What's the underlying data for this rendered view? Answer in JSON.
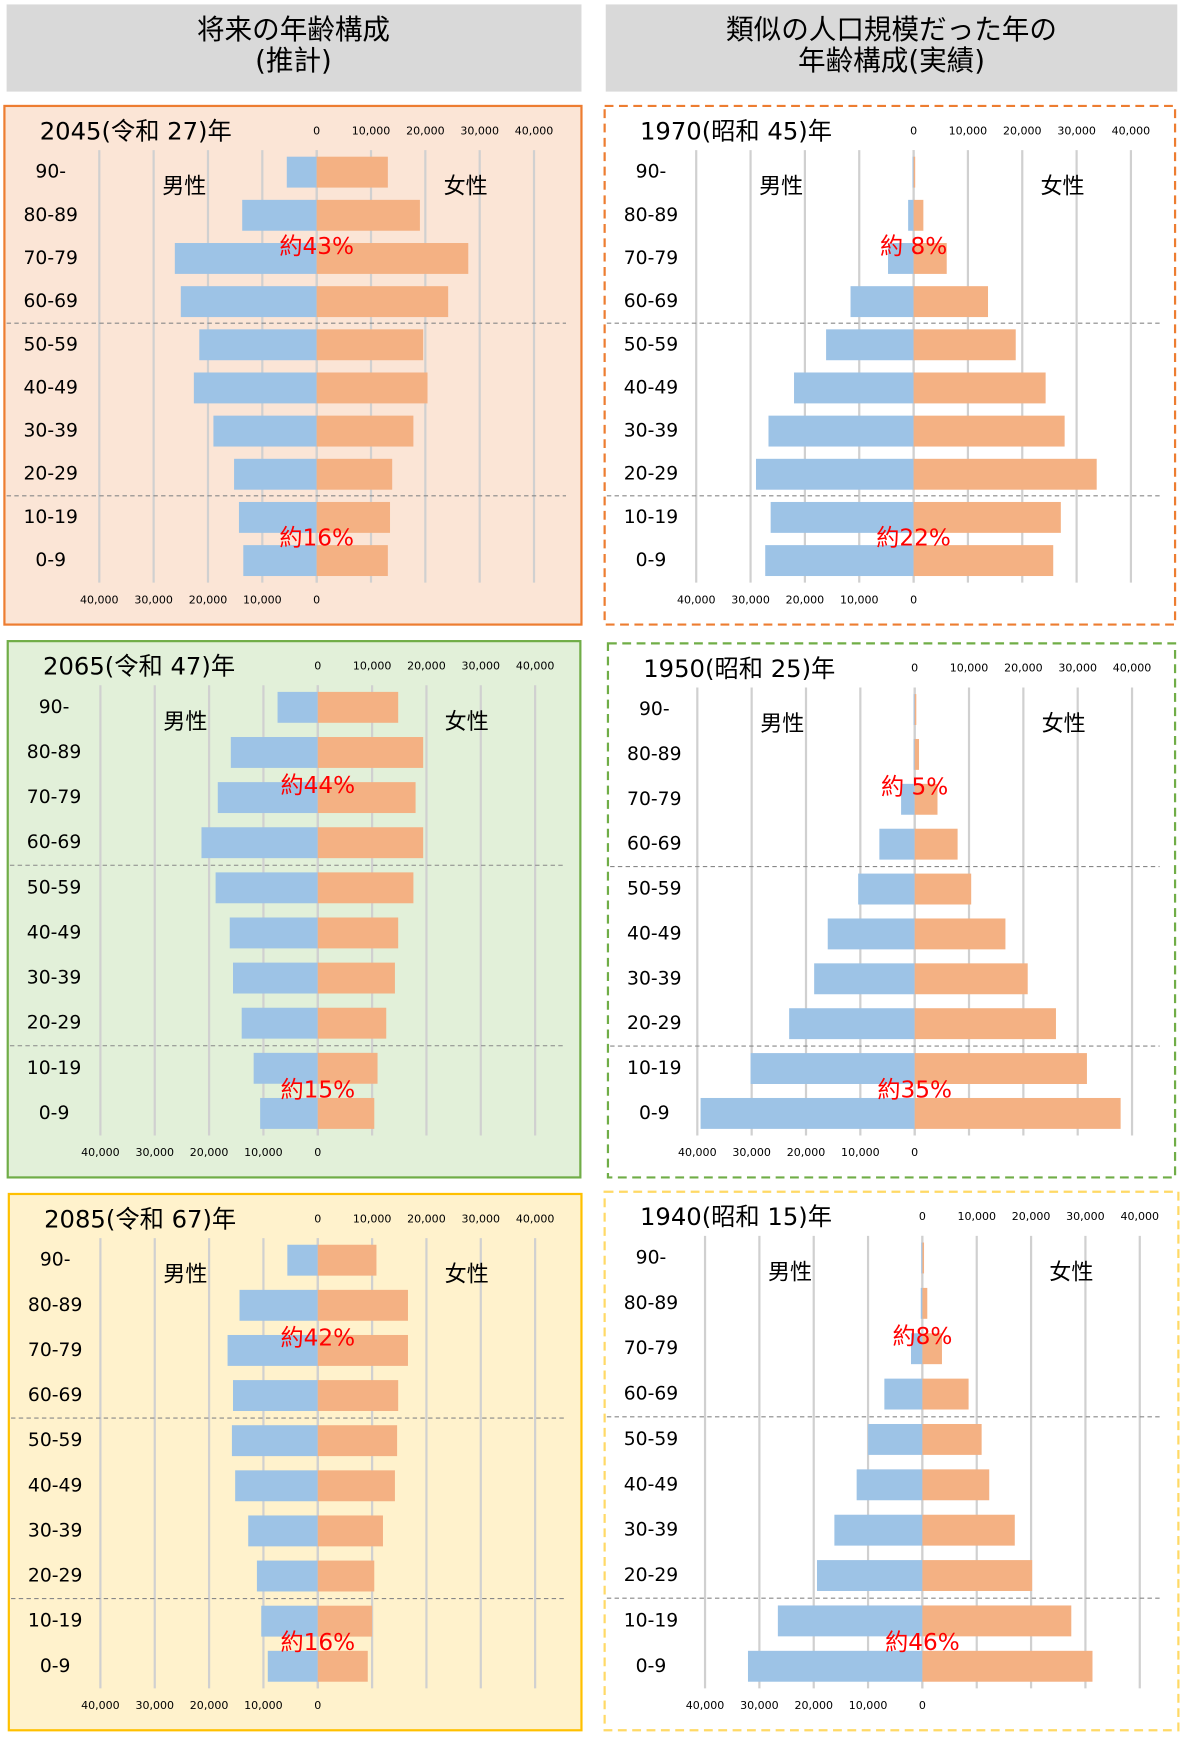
{
  "headers": [
    [
      "将来の年齢構成",
      "(推計)"
    ],
    [
      "類似の人口規模だった年の",
      "年齢構成(実績)"
    ]
  ],
  "chart_data": [
    {
      "type": "bar",
      "title": "2045(令和 27)年",
      "background": "#fbe5d6",
      "border_color": "#ed7d31",
      "border_style": "solid",
      "categories": [
        "90-",
        "80-89",
        "70-79",
        "60-69",
        "50-59",
        "40-49",
        "30-39",
        "20-29",
        "10-19",
        "0-9"
      ],
      "series": [
        {
          "name": "男性",
          "color": "#9dc3e6",
          "values": [
            5500,
            13700,
            26100,
            25000,
            21600,
            22600,
            19000,
            15200,
            14300,
            13500
          ]
        },
        {
          "name": "女性",
          "color": "#f4b183",
          "values": [
            13100,
            19000,
            27900,
            24200,
            19600,
            20400,
            17800,
            13900,
            13500,
            13100
          ]
        }
      ],
      "xlim": [
        0,
        40000
      ],
      "xticks": [
        {
          "value": 40000,
          "label": "40,000"
        },
        {
          "value": 30000,
          "label": "30,000"
        },
        {
          "value": 20000,
          "label": "20,000"
        },
        {
          "value": 10000,
          "label": "10,000"
        },
        0
      ],
      "x2ticks": [
        0,
        {
          "value": 10000,
          "label": "10,000"
        },
        {
          "value": 20000,
          "label": "20,000"
        },
        {
          "value": 30000,
          "label": "30,000"
        },
        {
          "value": 40000,
          "label": "40,000"
        }
      ],
      "annotations": [
        "約43%",
        "約16%"
      ]
    },
    {
      "type": "bar",
      "title": "1970(昭和 45)年",
      "background": "#ffffff",
      "border_color": "#ed7d31",
      "border_style": "dashed",
      "categories": [
        "90-",
        "80-89",
        "70-79",
        "60-69",
        "50-59",
        "40-49",
        "30-39",
        "20-29",
        "10-19",
        "0-9"
      ],
      "series": [
        {
          "name": "男性",
          "color": "#9dc3e6",
          "values": [
            200,
            1000,
            4700,
            11600,
            16100,
            22000,
            26700,
            29000,
            26300,
            27300
          ]
        },
        {
          "name": "女性",
          "color": "#f4b183",
          "values": [
            300,
            1800,
            6100,
            13700,
            18800,
            24300,
            27800,
            33700,
            27100,
            25700
          ]
        }
      ],
      "xlim": [
        0,
        40000
      ],
      "xticks": [
        {
          "value": 40000,
          "label": "40,000"
        },
        {
          "value": 30000,
          "label": "30,000"
        },
        {
          "value": 20000,
          "label": "20,000"
        },
        {
          "value": 10000,
          "label": "10,000"
        },
        0
      ],
      "x2ticks": [
        0,
        {
          "value": 10000,
          "label": "10,000"
        },
        {
          "value": 20000,
          "label": "20,000"
        },
        {
          "value": 30000,
          "label": "30,000"
        },
        {
          "value": 40000,
          "label": "40,000"
        }
      ],
      "annotations": [
        "約 8%",
        "約22%"
      ]
    },
    {
      "type": "bar",
      "title": "2065(令和 47)年",
      "background": "#e2f0d9",
      "border_color": "#70ad47",
      "border_style": "solid",
      "categories": [
        "90-",
        "80-89",
        "70-79",
        "60-69",
        "50-59",
        "40-49",
        "30-39",
        "20-29",
        "10-19",
        "0-9"
      ],
      "series": [
        {
          "name": "男性",
          "color": "#9dc3e6",
          "values": [
            7400,
            16000,
            18400,
            21400,
            18800,
            16200,
            15600,
            14000,
            11800,
            10600
          ]
        },
        {
          "name": "女性",
          "color": "#f4b183",
          "values": [
            14800,
            19400,
            18000,
            19400,
            17600,
            14800,
            14200,
            12600,
            11000,
            10400
          ]
        }
      ],
      "xlim": [
        0,
        40000
      ],
      "xticks": [
        {
          "value": 40000,
          "label": "40,000"
        },
        {
          "value": 30000,
          "label": "30,000"
        },
        {
          "value": 20000,
          "label": "20,000"
        },
        {
          "value": 10000,
          "label": "10,000"
        },
        0
      ],
      "x2ticks": [
        0,
        {
          "value": 10000,
          "label": "10,000"
        },
        {
          "value": 20000,
          "label": "20,000"
        },
        {
          "value": 30000,
          "label": "30,000"
        },
        {
          "value": 40000,
          "label": "40,000"
        }
      ],
      "annotations": [
        "約44%",
        "約15%"
      ]
    },
    {
      "type": "bar",
      "title": "1950(昭和 25)年",
      "background": "#ffffff",
      "border_color": "#70ad47",
      "border_style": "dashed",
      "categories": [
        "90-",
        "80-89",
        "70-79",
        "60-69",
        "50-59",
        "40-49",
        "30-39",
        "20-29",
        "10-19",
        "0-9"
      ],
      "series": [
        {
          "name": "男性",
          "color": "#9dc3e6",
          "values": [
            200,
            200,
            2500,
            6500,
            10400,
            16000,
            18500,
            23100,
            30200,
            39400
          ]
        },
        {
          "name": "女性",
          "color": "#f4b183",
          "values": [
            300,
            800,
            4200,
            7900,
            10400,
            16700,
            20800,
            26000,
            31700,
            37900
          ]
        }
      ],
      "xlim": [
        0,
        40000
      ],
      "xticks": [
        {
          "value": 40000,
          "label": "40,000"
        },
        {
          "value": 30000,
          "label": "30,000"
        },
        {
          "value": 20000,
          "label": "20,000"
        },
        {
          "value": 10000,
          "label": "10,000"
        },
        0
      ],
      "x2ticks": [
        0,
        {
          "value": 10000,
          "label": "10,000"
        },
        {
          "value": 20000,
          "label": "20,000"
        },
        {
          "value": 30000,
          "label": "30,000"
        },
        {
          "value": 40000,
          "label": "40,000"
        }
      ],
      "annotations": [
        "約 5%",
        "約35%"
      ]
    },
    {
      "type": "bar",
      "title": "2085(令和 67)年",
      "background": "#fff2cc",
      "border_color": "#ffc000",
      "border_style": "solid",
      "categories": [
        "90-",
        "80-89",
        "70-79",
        "60-69",
        "50-59",
        "40-49",
        "30-39",
        "20-29",
        "10-19",
        "0-9"
      ],
      "series": [
        {
          "name": "男性",
          "color": "#9dc3e6",
          "values": [
            5600,
            14400,
            16600,
            15600,
            15800,
            15200,
            12800,
            11200,
            10400,
            9200
          ]
        },
        {
          "name": "女性",
          "color": "#f4b183",
          "values": [
            10800,
            16600,
            16600,
            14800,
            14600,
            14200,
            12000,
            10400,
            10000,
            9200
          ]
        }
      ],
      "xlim": [
        0,
        40000
      ],
      "xticks": [
        {
          "value": 40000,
          "label": "40,000"
        },
        {
          "value": 30000,
          "label": "30,000"
        },
        {
          "value": 20000,
          "label": "20,000"
        },
        {
          "value": 10000,
          "label": "10,000"
        },
        0
      ],
      "x2ticks": [
        0,
        {
          "value": 10000,
          "label": "10,000"
        },
        {
          "value": 20000,
          "label": "20,000"
        },
        {
          "value": 30000,
          "label": "30,000"
        },
        {
          "value": 40000,
          "label": "40,000"
        }
      ],
      "annotations": [
        "約42%",
        "約16%"
      ]
    },
    {
      "type": "bar",
      "title": "1940(昭和 15)年",
      "background": "#ffffff",
      "border_color": "#ffd966",
      "border_style": "dashed",
      "categories": [
        "90-",
        "80-89",
        "70-79",
        "60-69",
        "50-59",
        "40-49",
        "30-39",
        "20-29",
        "10-19",
        "0-9"
      ],
      "series": [
        {
          "name": "男性",
          "color": "#9dc3e6",
          "values": [
            200,
            300,
            2100,
            7000,
            10000,
            12100,
            16200,
            19400,
            26600,
            32100
          ]
        },
        {
          "name": "女性",
          "color": "#f4b183",
          "values": [
            300,
            900,
            3600,
            8500,
            10900,
            12300,
            17000,
            20200,
            27400,
            31300
          ]
        }
      ],
      "xlim": [
        0,
        40000
      ],
      "xticks": [
        {
          "value": 40000,
          "label": "40,000"
        },
        {
          "value": 30000,
          "label": "30,000"
        },
        {
          "value": 20000,
          "label": "20,000"
        },
        {
          "value": 10000,
          "label": "10,000"
        },
        0
      ],
      "x2ticks": [
        0,
        {
          "value": 10000,
          "label": "10,000"
        },
        {
          "value": 20000,
          "label": "20,000"
        },
        {
          "value": 30000,
          "label": "30,000"
        },
        {
          "value": 40000,
          "label": "40,000"
        }
      ],
      "annotations": [
        "約8%",
        "約46%"
      ]
    }
  ]
}
